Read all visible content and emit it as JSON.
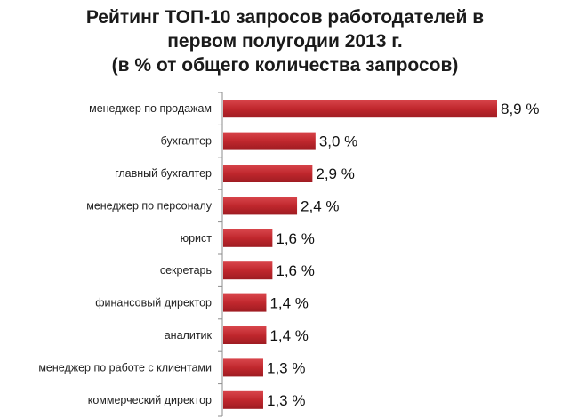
{
  "chart_data": {
    "type": "bar",
    "orientation": "horizontal",
    "title_lines": [
      "Рейтинг ТОП-10 запросов работодателей в",
      "первом полугодии 2013 г.",
      "(в % от общего количества запросов)"
    ],
    "categories": [
      "менеджер по продажам",
      "бухгалтер",
      "главный бухгалтер",
      "менеджер по персоналу",
      "юрист",
      "секретарь",
      "финансовый директор",
      "аналитик",
      "менеджер по работе с клиентами",
      "коммерческий директор"
    ],
    "values": [
      8.9,
      3.0,
      2.9,
      2.4,
      1.6,
      1.6,
      1.4,
      1.4,
      1.3,
      1.3
    ],
    "data_labels": [
      "8,9 %",
      "3,0 %",
      "2,9 %",
      "2,4 %",
      "1,6 %",
      "1,6 %",
      "1,4 %",
      "1,4 %",
      "1,3 %",
      "1,3 %"
    ],
    "xlim": [
      0,
      8.9
    ],
    "bar_color": "#c0272d",
    "axis_color": "#8c8c8c",
    "grid": false,
    "legend": "none"
  }
}
